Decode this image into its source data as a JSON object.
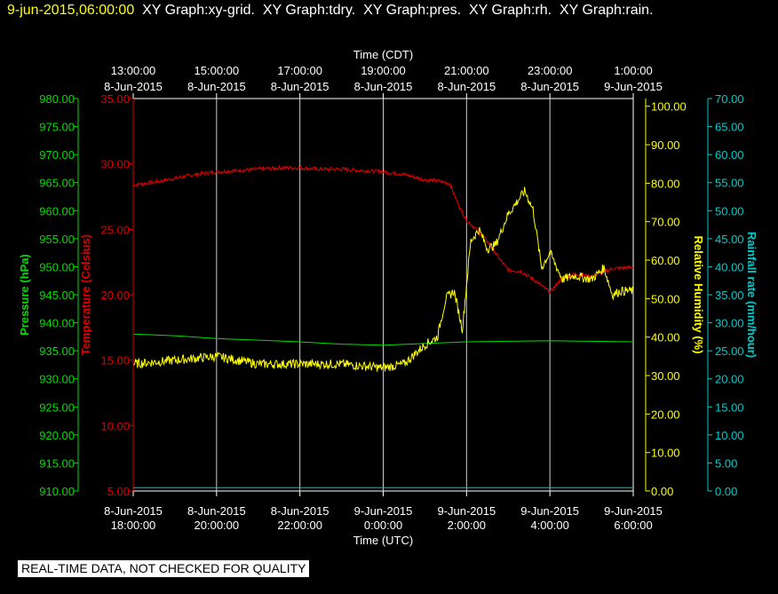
{
  "header": {
    "timestamp": "9-jun-2015,06:00:00",
    "graphs": "  XY Graph:xy-grid.  XY Graph:tdry.  XY Graph:pres.  XY Graph:rh.  XY Graph:rain."
  },
  "notice": "REAL-TIME DATA, NOT CHECKED FOR QUALITY",
  "colors": {
    "pressure": "#00dd00",
    "temperature": "#dd0000",
    "humidity": "#ffff00",
    "rain": "#00cccc",
    "grid": "#ffffff"
  },
  "chart_data": {
    "type": "line",
    "grid": true,
    "top_axis": {
      "label": "Time (CDT)",
      "ticks": [
        [
          "13:00:00",
          "8-Jun-2015"
        ],
        [
          "15:00:00",
          "8-Jun-2015"
        ],
        [
          "17:00:00",
          "8-Jun-2015"
        ],
        [
          "19:00:00",
          "8-Jun-2015"
        ],
        [
          "21:00:00",
          "8-Jun-2015"
        ],
        [
          "23:00:00",
          "8-Jun-2015"
        ],
        [
          "1:00:00",
          "9-Jun-2015"
        ]
      ]
    },
    "bottom_axis": {
      "label": "Time (UTC)",
      "ticks": [
        [
          "8-Jun-2015",
          "18:00:00"
        ],
        [
          "8-Jun-2015",
          "20:00:00"
        ],
        [
          "8-Jun-2015",
          "22:00:00"
        ],
        [
          "9-Jun-2015",
          "0:00:00"
        ],
        [
          "9-Jun-2015",
          "2:00:00"
        ],
        [
          "9-Jun-2015",
          "4:00:00"
        ],
        [
          "9-Jun-2015",
          "6:00:00"
        ]
      ],
      "range_hours_utc": [
        18,
        30
      ]
    },
    "axes": {
      "pressure": {
        "label": "Pressure (hPa)",
        "ylim": [
          910,
          980
        ],
        "step": 5,
        "ticks": [
          "910.00",
          "915.00",
          "920.00",
          "925.00",
          "930.00",
          "935.00",
          "940.00",
          "945.00",
          "950.00",
          "955.00",
          "960.00",
          "965.00",
          "970.00",
          "975.00",
          "980.00"
        ]
      },
      "temperature": {
        "label": "Temperature (Celsius)",
        "ylim": [
          5,
          35
        ],
        "step": 5,
        "ticks": [
          "5.00",
          "10.00",
          "15.00",
          "20.00",
          "25.00",
          "30.00",
          "35.00"
        ]
      },
      "humidity": {
        "label": "Relative Humidity (%)",
        "ylim": [
          0,
          102
        ],
        "step": 10,
        "ticks": [
          "0.00",
          "10.00",
          "20.00",
          "30.00",
          "40.00",
          "50.00",
          "60.00",
          "70.00",
          "80.00",
          "90.00",
          "100.00"
        ]
      },
      "rain": {
        "label": "Rainfall rate (mm/hour)",
        "ylim": [
          0,
          70
        ],
        "step": 5,
        "ticks": [
          "0.00",
          "5.00",
          "10.00",
          "15.00",
          "20.00",
          "25.00",
          "30.00",
          "35.00",
          "40.00",
          "45.00",
          "50.00",
          "55.00",
          "60.00",
          "65.00",
          "70.00"
        ]
      }
    },
    "series": [
      {
        "name": "Temperature (Celsius)",
        "axis": "temperature",
        "x": [
          18.0,
          18.5,
          19.0,
          19.5,
          20.0,
          20.5,
          21.0,
          21.5,
          22.0,
          22.5,
          23.0,
          23.5,
          24.0,
          24.5,
          25.0,
          25.3,
          25.6,
          25.8,
          26.0,
          26.2,
          26.5,
          26.8,
          27.0,
          27.3,
          27.6,
          28.0,
          28.3,
          28.6,
          29.0,
          29.5,
          30.0
        ],
        "y": [
          28.4,
          28.6,
          28.9,
          29.2,
          29.4,
          29.5,
          29.6,
          29.7,
          29.7,
          29.6,
          29.6,
          29.5,
          29.4,
          29.2,
          28.8,
          28.7,
          28.5,
          26.9,
          25.7,
          25.1,
          24.1,
          22.7,
          21.9,
          21.8,
          21.2,
          20.2,
          21.3,
          21.6,
          21.4,
          22.0,
          22.1
        ],
        "noise": 0.15
      },
      {
        "name": "Pressure (hPa)",
        "axis": "pressure",
        "x": [
          18,
          19,
          20,
          21,
          22,
          23,
          24,
          25,
          26,
          27,
          28,
          29,
          30
        ],
        "y": [
          938.0,
          937.7,
          937.2,
          936.9,
          936.6,
          936.2,
          936.0,
          936.3,
          936.6,
          936.7,
          936.8,
          936.7,
          936.6
        ],
        "noise": 0
      },
      {
        "name": "Relative Humidity (%)",
        "axis": "humidity",
        "x": [
          18.0,
          19.0,
          20.0,
          21.0,
          22.0,
          23.0,
          24.0,
          24.5,
          25.0,
          25.3,
          25.5,
          25.7,
          25.9,
          26.1,
          26.3,
          26.5,
          26.7,
          27.0,
          27.2,
          27.4,
          27.6,
          27.8,
          28.0,
          28.3,
          28.6,
          29.0,
          29.3,
          29.5,
          29.7,
          30.0
        ],
        "y": [
          33,
          34,
          35,
          33,
          33,
          33,
          32,
          33,
          38,
          40,
          50,
          52,
          42,
          65,
          68,
          63,
          64,
          72,
          75,
          78,
          73,
          58,
          62,
          55,
          56,
          55,
          58,
          51,
          52,
          52
        ],
        "noise": 1.2
      },
      {
        "name": "Rainfall rate (mm/hour)",
        "axis": "rain",
        "x": [
          18,
          30
        ],
        "y": [
          0.6,
          0.6
        ],
        "noise": 0
      }
    ]
  }
}
